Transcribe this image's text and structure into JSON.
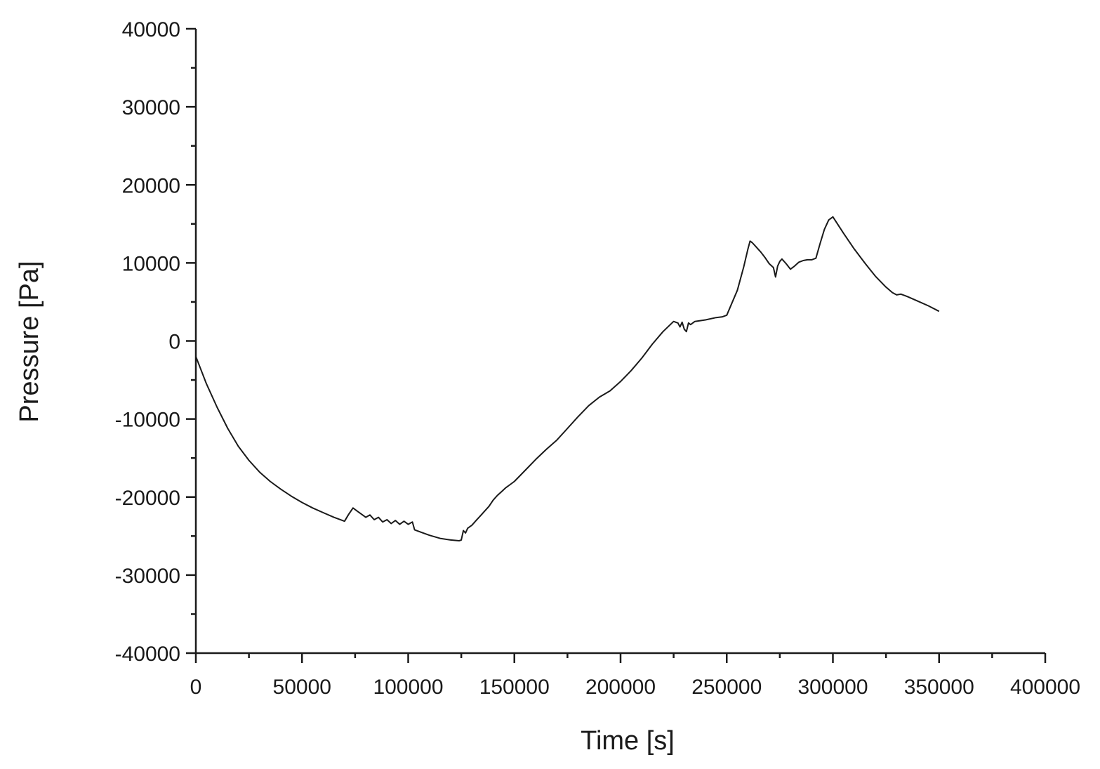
{
  "chart_data": {
    "type": "line",
    "xlabel": "Time [s]",
    "ylabel": "Pressure [Pa]",
    "xlim": [
      0,
      400000
    ],
    "ylim": [
      -40000,
      40000
    ],
    "xticks": [
      0,
      50000,
      100000,
      150000,
      200000,
      250000,
      300000,
      350000,
      400000
    ],
    "yticks": [
      40000,
      30000,
      20000,
      10000,
      0,
      -10000,
      -20000,
      -30000,
      -40000
    ],
    "xtick_labels": [
      "0",
      "50000",
      "100000",
      "150000",
      "200000",
      "250000",
      "300000",
      "350000",
      "400000"
    ],
    "ytick_labels": [
      "40000",
      "30000",
      "20000",
      "10000",
      "0",
      "-10000",
      "-20000",
      "-30000",
      "-40000"
    ],
    "grid": false,
    "line_color": "#1a1a1a",
    "series": [
      {
        "x": [
          0,
          5000,
          10000,
          15000,
          20000,
          25000,
          30000,
          35000,
          40000,
          45000,
          50000,
          55000,
          60000,
          65000,
          70000,
          72000,
          74000,
          76000,
          78000,
          80000,
          82000,
          84000,
          86000,
          88000,
          90000,
          92000,
          94000,
          96000,
          98000,
          100000,
          102000,
          103000,
          106000,
          110000,
          115000,
          120000,
          124000,
          125000,
          126000,
          127000,
          128000,
          130000,
          132000,
          134000,
          136000,
          138000,
          140000,
          142000,
          144000,
          146000,
          148000,
          150000,
          155000,
          160000,
          165000,
          170000,
          175000,
          180000,
          185000,
          190000,
          195000,
          200000,
          205000,
          210000,
          215000,
          220000,
          225000,
          227000,
          228000,
          229000,
          230000,
          231000,
          232000,
          233000,
          235000,
          240000,
          245000,
          248000,
          250000,
          255000,
          258000,
          260000,
          261000,
          262000,
          264000,
          266000,
          268000,
          270000,
          272000,
          273000,
          274000,
          275000,
          276000,
          278000,
          280000,
          282000,
          284000,
          286000,
          288000,
          290000,
          292000,
          294000,
          296000,
          298000,
          300000,
          305000,
          310000,
          315000,
          320000,
          325000,
          328000,
          330000,
          332000,
          335000,
          340000,
          345000,
          350000
        ],
        "y": [
          -2000,
          -5500,
          -8500,
          -11200,
          -13500,
          -15300,
          -16800,
          -18000,
          -19000,
          -19900,
          -20700,
          -21400,
          -22000,
          -22600,
          -23100,
          -22200,
          -21400,
          -21800,
          -22200,
          -22600,
          -22300,
          -22900,
          -22600,
          -23200,
          -22900,
          -23400,
          -23000,
          -23500,
          -23100,
          -23500,
          -23200,
          -24200,
          -24500,
          -24900,
          -25300,
          -25500,
          -25600,
          -25500,
          -24300,
          -24600,
          -24000,
          -23600,
          -23000,
          -22400,
          -21800,
          -21200,
          -20400,
          -19800,
          -19300,
          -18800,
          -18400,
          -18000,
          -16600,
          -15200,
          -13900,
          -12700,
          -11200,
          -9700,
          -8300,
          -7200,
          -6400,
          -5200,
          -3800,
          -2200,
          -400,
          1200,
          2500,
          2300,
          1800,
          2400,
          1500,
          1200,
          2300,
          2100,
          2500,
          2700,
          3000,
          3100,
          3300,
          6500,
          9500,
          11800,
          12800,
          12600,
          12000,
          11400,
          10700,
          9900,
          9400,
          8200,
          9600,
          10200,
          10500,
          9900,
          9200,
          9600,
          10100,
          10300,
          10400,
          10400,
          10600,
          12500,
          14300,
          15500,
          15900,
          13800,
          11800,
          10000,
          8300,
          6900,
          6200,
          5900,
          6000,
          5700,
          5100,
          4500,
          3800
        ]
      }
    ]
  }
}
